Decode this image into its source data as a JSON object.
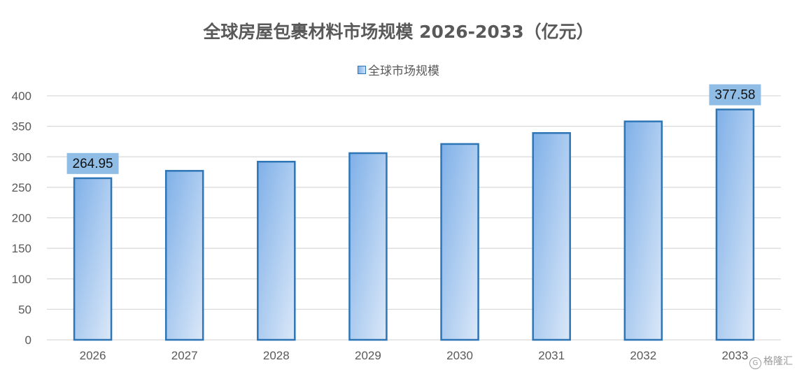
{
  "chart_data": {
    "type": "bar",
    "title": "全球房屋包裹材料市场规模 2026-2033（亿元）",
    "categories": [
      "2026",
      "2027",
      "2028",
      "2029",
      "2030",
      "2031",
      "2032",
      "2033"
    ],
    "series": [
      {
        "name": "全球市场规模",
        "values": [
          264.95,
          277,
          292,
          306,
          321,
          339,
          358,
          377.58
        ]
      }
    ],
    "data_labels": [
      {
        "category": "2026",
        "text": "264.95"
      },
      {
        "category": "2033",
        "text": "377.58"
      }
    ],
    "yticks": [
      0,
      50,
      100,
      150,
      200,
      250,
      300,
      350,
      400
    ],
    "ylim": [
      0,
      400
    ],
    "xlabel": "",
    "ylabel": "",
    "grid": true,
    "legend_position": "top-center",
    "colors": {
      "bar_gradient_start": "#7fb0e8",
      "bar_gradient_end": "#dbe8f8",
      "bar_border": "#2e75b6",
      "data_label_bg": "#8fbde6",
      "grid": "#d9d9d9",
      "axis_text": "#595959"
    }
  },
  "watermark": {
    "icon": "gelonghui-logo-icon",
    "text": "格隆汇"
  }
}
